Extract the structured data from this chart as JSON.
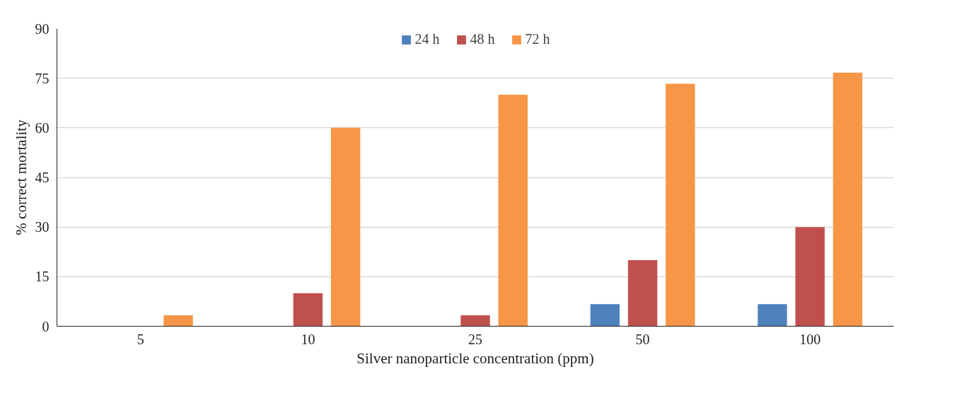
{
  "chart_data": {
    "type": "bar",
    "xlabel": "Silver nanoparticle concentration (ppm)",
    "ylabel": "% correct mortality",
    "categories": [
      "5",
      "10",
      "25",
      "50",
      "100"
    ],
    "series": [
      {
        "name": "24 h",
        "color": "#4f81bd",
        "values": [
          0,
          0,
          0,
          6.7,
          6.7
        ]
      },
      {
        "name": "48 h",
        "color": "#c0504d",
        "values": [
          0,
          10,
          3.3,
          20,
          30
        ]
      },
      {
        "name": "72 h",
        "color": "#f79646",
        "values": [
          3.3,
          60,
          70,
          73.3,
          76.7
        ]
      }
    ],
    "ylim": [
      0,
      90
    ],
    "yticks": [
      0,
      15,
      30,
      45,
      60,
      75,
      90
    ],
    "grid": "y",
    "legend": "top"
  }
}
